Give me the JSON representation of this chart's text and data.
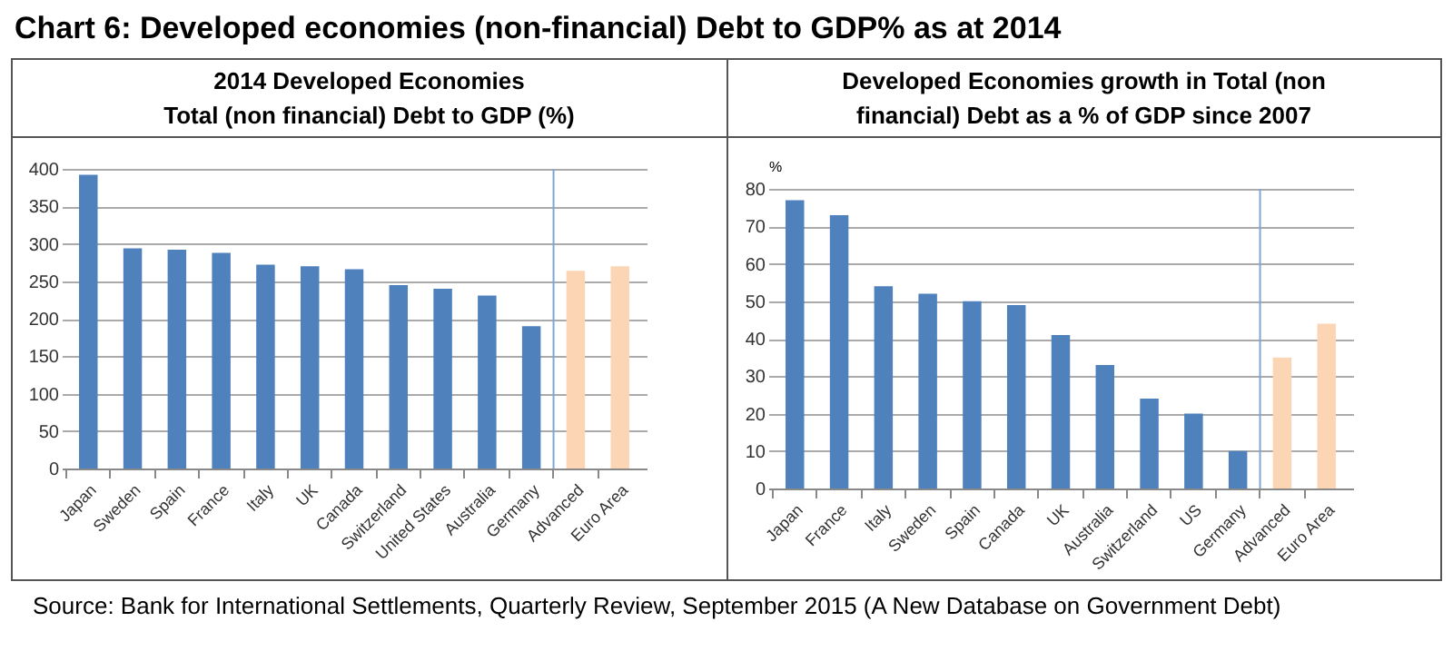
{
  "chart_data": [
    {
      "type": "bar",
      "title": "Chart 6: Developed economies (non-financial) Debt to GDP% as at 2014",
      "subtitle": "2014 Developed Economies\nTotal (non financial) Debt to GDP (%)",
      "categories": [
        "Japan",
        "Sweden",
        "Spain",
        "France",
        "Italy",
        "UK",
        "Canada",
        "Switzerland",
        "United States",
        "Australia",
        "Germany",
        "Advanced",
        "Euro Area"
      ],
      "values": [
        392,
        294,
        292,
        288,
        272,
        270,
        266,
        245,
        240,
        231,
        190,
        264,
        270
      ],
      "colors": [
        "#4f81bd",
        "#4f81bd",
        "#4f81bd",
        "#4f81bd",
        "#4f81bd",
        "#4f81bd",
        "#4f81bd",
        "#4f81bd",
        "#4f81bd",
        "#4f81bd",
        "#4f81bd",
        "#fcd5b5",
        "#fcd5b5"
      ],
      "ylim": [
        0,
        400
      ],
      "yticks": [
        0,
        50,
        100,
        150,
        200,
        250,
        300,
        350,
        400
      ],
      "grid": "y",
      "ref_lines": [
        {
          "axis": "x",
          "value": "Advanced",
          "color": "#7fa6d6"
        }
      ],
      "annotations": [
        "Source: Bank for International Settlements, Quarterly Review, September 2015 (A New Database on Government Debt)"
      ]
    },
    {
      "type": "bar",
      "subtitle": "Developed Economies growth in Total (non\nfinancial) Debt as a % of GDP since 2007",
      "ylabel": "%",
      "categories": [
        "Japan",
        "France",
        "Italy",
        "Sweden",
        "Spain",
        "Canada",
        "UK",
        "Australia",
        "Switzerland",
        "US",
        "Germany",
        "Advanced",
        "Euro Area"
      ],
      "values": [
        77,
        73,
        54,
        52,
        50,
        49,
        41,
        33,
        24,
        20,
        10,
        35,
        44
      ],
      "colors": [
        "#4f81bd",
        "#4f81bd",
        "#4f81bd",
        "#4f81bd",
        "#4f81bd",
        "#4f81bd",
        "#4f81bd",
        "#4f81bd",
        "#4f81bd",
        "#4f81bd",
        "#4f81bd",
        "#fcd5b5",
        "#fcd5b5"
      ],
      "ylim": [
        0,
        80
      ],
      "yticks": [
        0,
        10,
        20,
        30,
        40,
        50,
        60,
        70,
        80
      ],
      "grid": "y",
      "ref_lines": [
        {
          "axis": "x",
          "value": "Advanced",
          "color": "#7fa6d6"
        }
      ]
    }
  ]
}
